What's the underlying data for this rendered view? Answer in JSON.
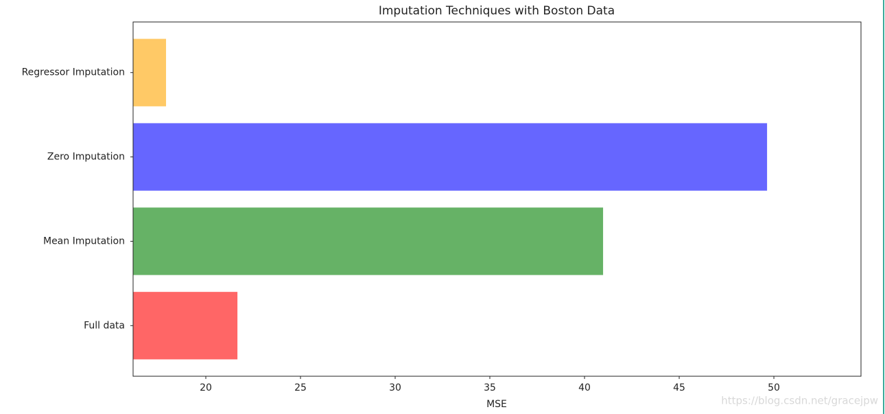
{
  "chart_data": {
    "type": "barh",
    "title": "Imputation Techniques with Boston Data",
    "xlabel": "MSE",
    "categories": [
      "Full data",
      "Mean Imputation",
      "Zero Imputation",
      "Regressor Imputation"
    ],
    "values": [
      21.67,
      40.98,
      49.64,
      17.9
    ],
    "colors": [
      "#ff6666",
      "#66b266",
      "#6666ff",
      "#ffc966"
    ],
    "xlim": [
      16.16,
      54.6
    ],
    "xticks": [
      20,
      25,
      30,
      35,
      40,
      45,
      50
    ]
  },
  "watermark": "https://blog.csdn.net/gracejpw"
}
